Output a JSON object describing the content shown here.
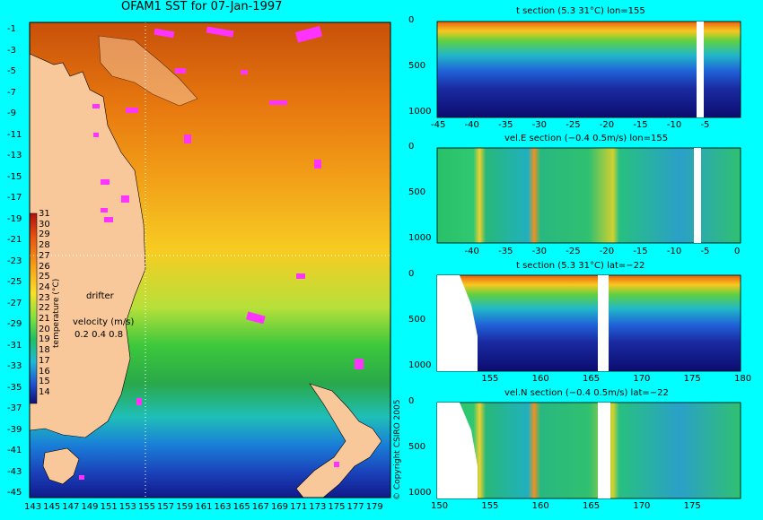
{
  "map": {
    "title": "OFAM1 SST for 07-Jan-1997",
    "x_ticks": [
      "143",
      "145",
      "147",
      "149",
      "151",
      "153",
      "155",
      "157",
      "159",
      "161",
      "163",
      "165",
      "167",
      "169",
      "171",
      "173",
      "175",
      "177",
      "179"
    ],
    "y_ticks": [
      "-1",
      "-3",
      "-5",
      "-7",
      "-9",
      "-11",
      "-13",
      "-15",
      "-17",
      "-19",
      "-21",
      "-23",
      "-25",
      "-27",
      "-29",
      "-31",
      "-33",
      "-35",
      "-37",
      "-39",
      "-41",
      "-43",
      "-45"
    ],
    "colorbar_ticks": [
      "31",
      "30",
      "29",
      "28",
      "27",
      "26",
      "25",
      "24",
      "23",
      "22",
      "21",
      "20",
      "19",
      "18",
      "17",
      "16",
      "15",
      "14"
    ],
    "colorbar_label": "temperature (°C)",
    "drifter_label": "drifter",
    "velocity_label": "velocity (m/s)",
    "velocity_scale": "0.2 0.4 0.8",
    "copyright": "© Copyright CSIRO 2005"
  },
  "panels": [
    {
      "title": "t section (5.3      31°C) lon=155",
      "x_ticks": [
        "-45",
        "-40",
        "-35",
        "-30",
        "-25",
        "-20",
        "-15",
        "-10",
        "-5"
      ],
      "y_ticks": [
        "0",
        "500",
        "1000"
      ]
    },
    {
      "title": "vel.E section (−0.4      0.5m/s) lon=155",
      "x_ticks": [
        "-40",
        "-35",
        "-30",
        "-25",
        "-20",
        "-15",
        "-10",
        "-5",
        "0"
      ],
      "y_ticks": [
        "0",
        "500",
        "1000"
      ]
    },
    {
      "title": "t section (5.3      31°C) lat=−22",
      "x_ticks": [
        "155",
        "160",
        "165",
        "170",
        "175",
        "180"
      ],
      "y_ticks": [
        "0",
        "500",
        "1000"
      ]
    },
    {
      "title": "vel.N section (−0.4      0.5m/s) lat=−22",
      "x_ticks": [
        "150",
        "155",
        "160",
        "165",
        "170",
        "175"
      ],
      "y_ticks": [
        "0",
        "500",
        "1000"
      ]
    }
  ],
  "chart_data": [
    {
      "type": "heatmap",
      "title": "OFAM1 SST for 07-Jan-1997",
      "xlabel": "",
      "ylabel": "",
      "xlim": [
        143,
        180
      ],
      "ylim": [
        -45,
        0
      ],
      "colorbar_range": [
        14,
        31
      ],
      "colorbar_label": "temperature (°C)"
    },
    {
      "type": "heatmap",
      "title": "t section (5.3      31°C) lon=155",
      "xlim": [
        -45,
        0
      ],
      "ylim": [
        1050,
        0
      ],
      "value_range": [
        5.3,
        31
      ]
    },
    {
      "type": "heatmap",
      "title": "vel.E section (−0.4      0.5m/s) lon=155",
      "xlim": [
        -45,
        0
      ],
      "ylim": [
        1050,
        0
      ],
      "value_range": [
        -0.4,
        0.5
      ]
    },
    {
      "type": "heatmap",
      "title": "t section (5.3      31°C) lat=−22",
      "xlim": [
        150,
        180
      ],
      "ylim": [
        1050,
        0
      ],
      "value_range": [
        5.3,
        31
      ]
    },
    {
      "type": "heatmap",
      "title": "vel.N section (−0.4      0.5m/s) lat=−22",
      "xlim": [
        150,
        180
      ],
      "ylim": [
        1050,
        0
      ],
      "value_range": [
        -0.4,
        0.5
      ]
    }
  ],
  "colors": {
    "background": "#00ffff",
    "land": "#f8c89a",
    "drifter": "#ff33ff"
  }
}
